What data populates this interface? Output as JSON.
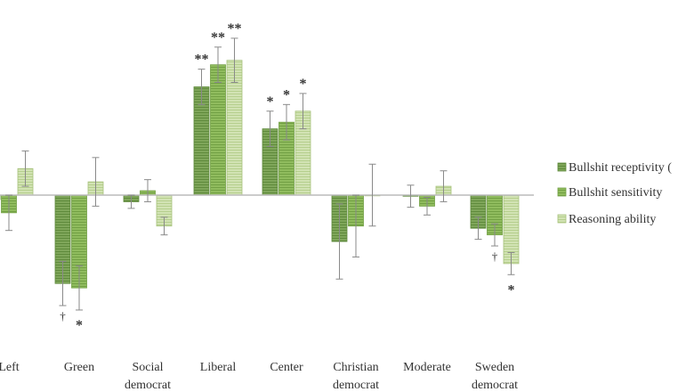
{
  "chart_data": {
    "type": "bar",
    "title": "",
    "xlabel": "",
    "ylabel": "",
    "ylim": [
      -0.45,
      0.65
    ],
    "grid": false,
    "legend_position": "right",
    "categories": [
      [
        "Left"
      ],
      [
        "Green"
      ],
      [
        "Social",
        "democrat"
      ],
      [
        "Liberal"
      ],
      [
        "Center"
      ],
      [
        "Christian",
        "democrat"
      ],
      [
        "Moderate"
      ],
      [
        "Sweden",
        "democrat"
      ]
    ],
    "series": [
      {
        "name": "Bullshit receptivity (",
        "color": "#7fa65a",
        "values": [
          -0.02,
          -0.4,
          -0.03,
          0.49,
          0.3,
          -0.21,
          -0.005,
          -0.15
        ],
        "errors": [
          0.06,
          0.1,
          0.03,
          0.08,
          0.08,
          0.17,
          0.05,
          0.05
        ],
        "significance": [
          "",
          "†",
          "",
          "**",
          "*",
          "",
          "",
          ""
        ]
      },
      {
        "name": "Bullshit sensitivity",
        "color": "#8fbb5e",
        "values": [
          -0.08,
          -0.42,
          0.02,
          0.59,
          0.33,
          -0.14,
          -0.05,
          -0.18
        ],
        "errors": [
          0.08,
          0.1,
          0.05,
          0.08,
          0.08,
          0.14,
          0.04,
          0.05
        ],
        "significance": [
          "",
          "*",
          "",
          "**",
          "*",
          "",
          "",
          "†"
        ]
      },
      {
        "name": "Reasoning ability",
        "color": "#cfe0b0",
        "values": [
          0.12,
          0.06,
          -0.14,
          0.61,
          0.38,
          0.0,
          0.04,
          -0.31
        ],
        "errors": [
          0.08,
          0.11,
          0.04,
          0.1,
          0.08,
          0.14,
          0.07,
          0.05
        ],
        "significance": [
          "",
          "",
          "",
          "**",
          "*",
          "",
          "",
          "*"
        ]
      }
    ]
  }
}
